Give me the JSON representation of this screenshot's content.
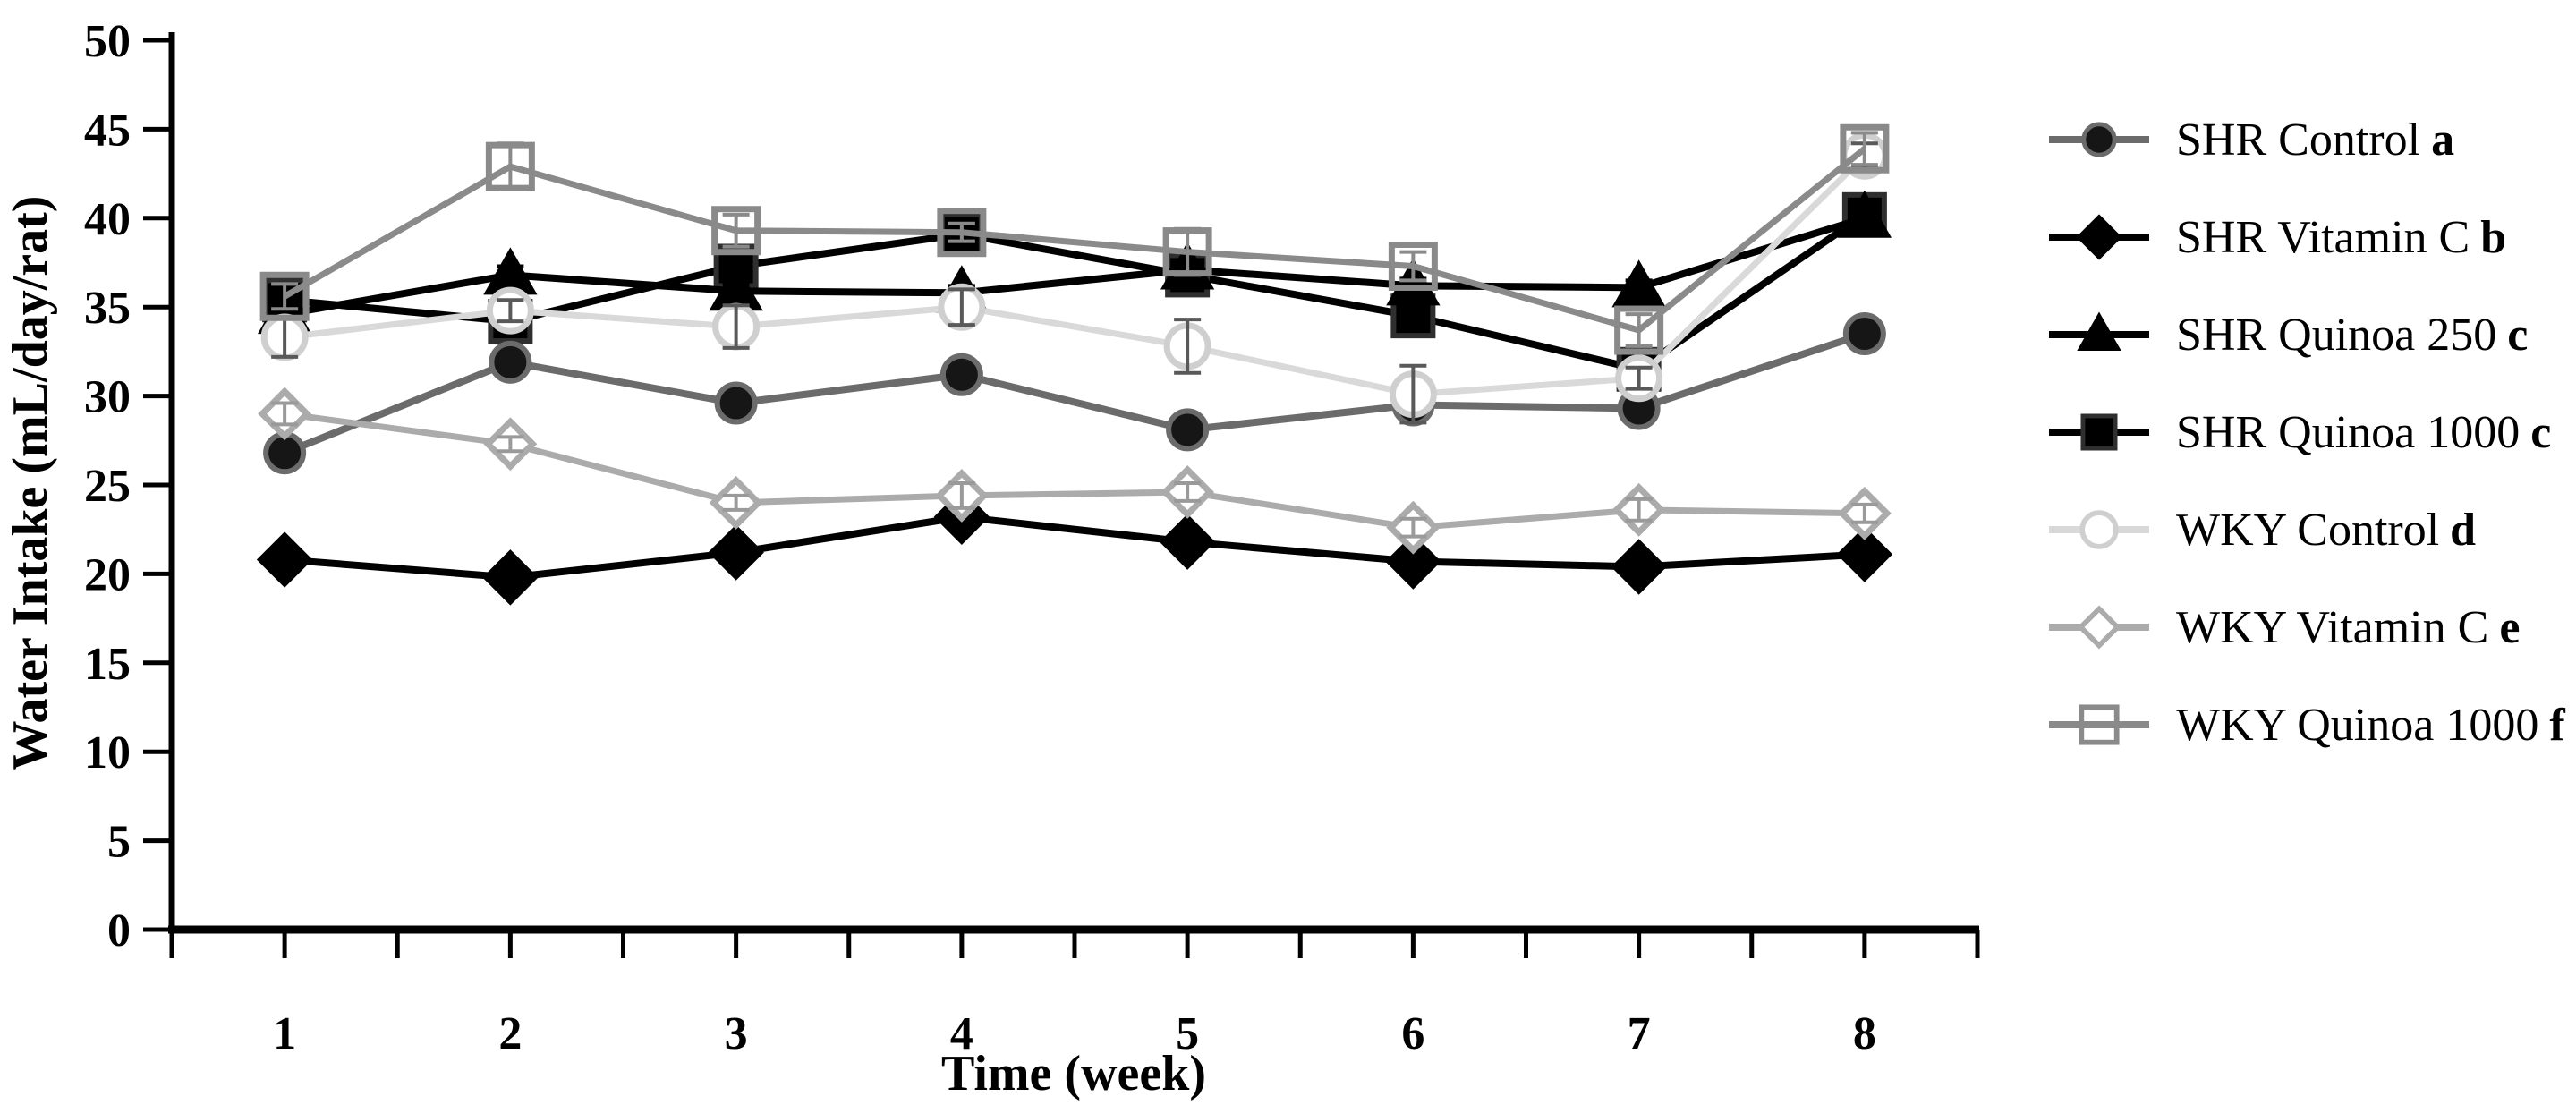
{
  "figure": {
    "description": "Line chart of water intake per week for rat groups"
  },
  "y_axis": {
    "title": "Water Intake (mL/day/rat)",
    "tick_labels": [
      "0",
      "5",
      "10",
      "15",
      "20",
      "25",
      "30",
      "35",
      "40",
      "45",
      "50"
    ]
  },
  "x_axis": {
    "title": "Time (week)",
    "tick_labels": [
      "1",
      "2",
      "3",
      "4",
      "5",
      "6",
      "7",
      "8"
    ]
  },
  "chart_data": {
    "type": "line",
    "x": [
      1,
      2,
      3,
      4,
      5,
      6,
      7,
      8
    ],
    "title": "",
    "xlabel": "Time (week)",
    "ylabel": "Water Intake (mL/day/rat)",
    "xlim": [
      0.5,
      8.5
    ],
    "ylim": [
      0,
      50
    ],
    "y_tick_step": 5,
    "x_minor_tick_step": 0.5,
    "grid": false,
    "legend_position": "right",
    "background_color": "#ffffff",
    "axis_color": "#000000",
    "error_bars": true,
    "series": [
      {
        "name": "SHR Control",
        "suffix": "a",
        "marker": "circle",
        "style": "filled",
        "line_color": "#6b6b6b",
        "marker_fill": "#161616",
        "marker_stroke": "#6b6b6b",
        "error_color": "#3a3a3a",
        "values": [
          26.8,
          31.9,
          29.6,
          31.2,
          28.1,
          29.5,
          29.3,
          33.5
        ],
        "errors": [
          0.4,
          0.4,
          0.4,
          0.5,
          0.4,
          0.4,
          0.4,
          0.5
        ]
      },
      {
        "name": "SHR Vitamin C",
        "suffix": "b",
        "marker": "diamond",
        "style": "filled",
        "line_color": "#000000",
        "marker_fill": "#000000",
        "marker_stroke": "#000000",
        "error_color": "#000000",
        "values": [
          20.8,
          19.8,
          21.2,
          23.2,
          21.8,
          20.7,
          20.4,
          21.1
        ],
        "errors": [
          0.3,
          0.3,
          0.3,
          0.4,
          0.4,
          0.3,
          0.3,
          0.4
        ]
      },
      {
        "name": "SHR Quinoa 250",
        "suffix": "c",
        "marker": "triangle",
        "style": "filled",
        "line_color": "#000000",
        "marker_fill": "#000000",
        "marker_stroke": "#000000",
        "error_color": "#000000",
        "values": [
          34.6,
          36.8,
          35.9,
          35.8,
          37.1,
          36.2,
          36.1,
          40.0
        ],
        "errors": [
          0.5,
          0.5,
          0.4,
          0.4,
          0.5,
          0.4,
          0.4,
          0.5
        ]
      },
      {
        "name": "SHR Quinoa 1000",
        "suffix": "c",
        "marker": "square",
        "style": "filled",
        "line_color": "#000000",
        "marker_fill": "#000000",
        "marker_stroke": "#2f2f2f",
        "error_color": "#000000",
        "values": [
          35.4,
          34.2,
          37.3,
          39.1,
          36.8,
          34.5,
          31.5,
          40.2
        ],
        "errors": [
          0.5,
          0.4,
          0.5,
          0.5,
          0.5,
          0.4,
          0.4,
          0.8
        ]
      },
      {
        "name": "WKY Control",
        "suffix": "d",
        "marker": "circle",
        "style": "open",
        "line_color": "#d9d9d9",
        "marker_fill": "#ffffff",
        "marker_stroke": "#cfcfcf",
        "error_color": "#595959",
        "values": [
          33.3,
          34.8,
          33.9,
          35.0,
          32.8,
          30.1,
          31.0,
          43.5
        ],
        "errors": [
          1.1,
          0.6,
          1.2,
          1.0,
          1.5,
          1.6,
          0.6,
          0.7
        ]
      },
      {
        "name": "WKY Vitamin C",
        "suffix": "e",
        "marker": "diamond",
        "style": "open",
        "line_color": "#ababab",
        "marker_fill": "#ffffff",
        "marker_stroke": "#ababab",
        "error_color": "#9a9a9a",
        "values": [
          29.0,
          27.3,
          24.0,
          24.4,
          24.6,
          22.6,
          23.6,
          23.4
        ],
        "errors": [
          0.6,
          0.4,
          0.4,
          0.7,
          0.5,
          0.5,
          0.6,
          0.5
        ]
      },
      {
        "name": "WKY Quinoa 1000",
        "suffix": "f",
        "marker": "square",
        "style": "open",
        "line_color": "#8a8a8a",
        "marker_fill": "none",
        "marker_stroke": "#8a8a8a",
        "error_color": "#8a8a8a",
        "values": [
          35.6,
          42.9,
          39.3,
          39.2,
          38.1,
          37.3,
          33.7,
          43.9
        ],
        "errors": [
          0.7,
          1.3,
          0.9,
          0.5,
          1.3,
          0.8,
          0.9,
          0.9
        ]
      }
    ]
  }
}
